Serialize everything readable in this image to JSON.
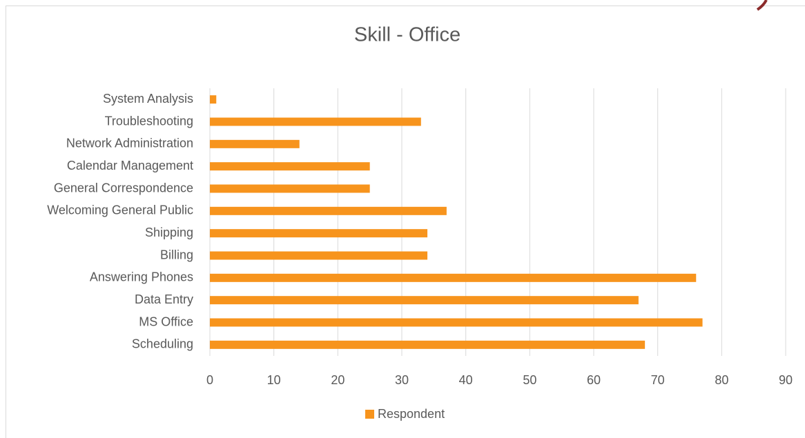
{
  "chart_data": {
    "type": "bar",
    "orientation": "horizontal",
    "title": "Skill - Office",
    "categories": [
      "Scheduling",
      "MS Office",
      "Data Entry",
      "Answering Phones",
      "Billing",
      "Shipping",
      "Welcoming General Public",
      "General Correspondence",
      "Calendar Management",
      "Network Administration",
      "Troubleshooting",
      "System Analysis"
    ],
    "series": [
      {
        "name": "Respondent",
        "color": "#f7941d",
        "values": [
          68,
          77,
          67,
          76,
          34,
          34,
          37,
          25,
          25,
          14,
          33,
          1
        ]
      }
    ],
    "xlim": [
      0,
      90
    ],
    "xticks": [
      0,
      10,
      20,
      30,
      40,
      50,
      60,
      70,
      80,
      90
    ],
    "grid": true,
    "legend": "bottom"
  }
}
